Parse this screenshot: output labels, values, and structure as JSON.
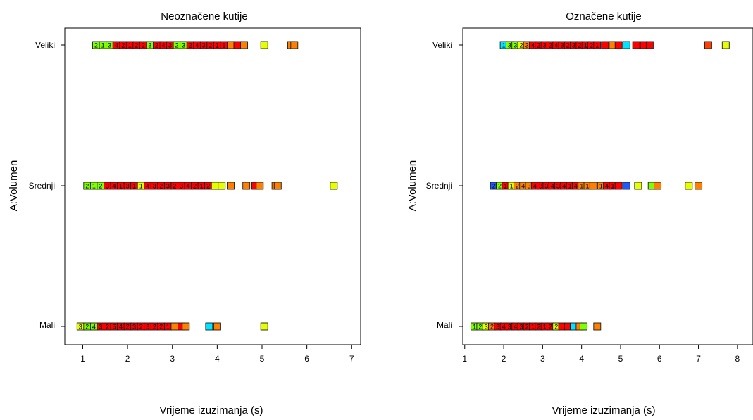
{
  "chart_data": [
    {
      "type": "scatter",
      "title": "Neoznačene kutije",
      "xlabel": "Vrijeme izuzimanja (s)",
      "ylabel": "A:Volumen",
      "categories": [
        "Mali",
        "Srednji",
        "Veliki"
      ],
      "xlim": [
        0.6,
        7.2
      ],
      "xticks": [
        1,
        2,
        3,
        4,
        5,
        6,
        7
      ],
      "grid": false,
      "series": [
        {
          "category": "Veliki",
          "points": [
            {
              "x": 1.3,
              "color": "#7fff00",
              "label": "2"
            },
            {
              "x": 1.45,
              "color": "#7fff00",
              "label": "1"
            },
            {
              "x": 1.6,
              "color": "#7fff00",
              "label": "3"
            },
            {
              "x": 1.75,
              "color": "#ff0000",
              "label": "4"
            },
            {
              "x": 1.9,
              "color": "#ff0000",
              "label": "2"
            },
            {
              "x": 2.05,
              "color": "#ff0000",
              "label": "1"
            },
            {
              "x": 2.2,
              "color": "#ff0000",
              "label": "2"
            },
            {
              "x": 2.35,
              "color": "#ff0000",
              "label": "2"
            },
            {
              "x": 2.5,
              "color": "#7fff00",
              "label": "3"
            },
            {
              "x": 2.65,
              "color": "#ff0000",
              "label": "2"
            },
            {
              "x": 2.8,
              "color": "#ff0000",
              "label": "4"
            },
            {
              "x": 2.95,
              "color": "#ff0000",
              "label": "3"
            },
            {
              "x": 3.1,
              "color": "#7fff00",
              "label": "2"
            },
            {
              "x": 3.25,
              "color": "#7fff00",
              "label": "3"
            },
            {
              "x": 3.4,
              "color": "#ff0000",
              "label": "2"
            },
            {
              "x": 3.55,
              "color": "#ff0000",
              "label": "4"
            },
            {
              "x": 3.7,
              "color": "#ff0000",
              "label": "3"
            },
            {
              "x": 3.85,
              "color": "#ff0000",
              "label": "2"
            },
            {
              "x": 4.0,
              "color": "#ff0000",
              "label": "1"
            },
            {
              "x": 4.15,
              "color": "#ff0000",
              "label": "1"
            },
            {
              "x": 4.3,
              "color": "#ff7f00",
              "label": ""
            },
            {
              "x": 4.45,
              "color": "#ff0000",
              "label": ""
            },
            {
              "x": 4.6,
              "color": "#ff7f00",
              "label": ""
            },
            {
              "x": 5.05,
              "color": "#e5ff00",
              "label": ""
            },
            {
              "x": 5.65,
              "color": "#ff7f00",
              "label": ""
            },
            {
              "x": 5.72,
              "color": "#ff7f00",
              "label": ""
            }
          ]
        },
        {
          "category": "Srednji",
          "points": [
            {
              "x": 1.1,
              "color": "#7fff00",
              "label": "2"
            },
            {
              "x": 1.25,
              "color": "#7fff00",
              "label": "1"
            },
            {
              "x": 1.4,
              "color": "#7fff00",
              "label": "2"
            },
            {
              "x": 1.55,
              "color": "#ff0000",
              "label": "3"
            },
            {
              "x": 1.7,
              "color": "#ff0000",
              "label": "4"
            },
            {
              "x": 1.85,
              "color": "#ff0000",
              "label": "1"
            },
            {
              "x": 2.0,
              "color": "#ff0000",
              "label": "3"
            },
            {
              "x": 2.15,
              "color": "#ff0000",
              "label": "1"
            },
            {
              "x": 2.3,
              "color": "#e5ff00",
              "label": "1"
            },
            {
              "x": 2.45,
              "color": "#ff0000",
              "label": "4"
            },
            {
              "x": 2.6,
              "color": "#ff0000",
              "label": "3"
            },
            {
              "x": 2.75,
              "color": "#ff0000",
              "label": "2"
            },
            {
              "x": 2.9,
              "color": "#ff0000",
              "label": "3"
            },
            {
              "x": 3.05,
              "color": "#ff0000",
              "label": "2"
            },
            {
              "x": 3.2,
              "color": "#ff0000",
              "label": "3"
            },
            {
              "x": 3.35,
              "color": "#ff0000",
              "label": "4"
            },
            {
              "x": 3.5,
              "color": "#ff0000",
              "label": "2"
            },
            {
              "x": 3.65,
              "color": "#ff0000",
              "label": "1"
            },
            {
              "x": 3.8,
              "color": "#ff0000",
              "label": "2"
            },
            {
              "x": 3.95,
              "color": "#e5ff00",
              "label": ""
            },
            {
              "x": 4.1,
              "color": "#e5ff00",
              "label": ""
            },
            {
              "x": 4.3,
              "color": "#ff7f00",
              "label": ""
            },
            {
              "x": 4.65,
              "color": "#ff7f00",
              "label": ""
            },
            {
              "x": 4.85,
              "color": "#ff0000",
              "label": ""
            },
            {
              "x": 4.95,
              "color": "#ff7f00",
              "label": ""
            },
            {
              "x": 5.3,
              "color": "#ff7f00",
              "label": ""
            },
            {
              "x": 5.35,
              "color": "#ff7f00",
              "label": ""
            },
            {
              "x": 6.6,
              "color": "#e5ff00",
              "label": ""
            }
          ]
        },
        {
          "category": "Mali",
          "points": [
            {
              "x": 0.95,
              "color": "#e5ff00",
              "label": "3"
            },
            {
              "x": 1.1,
              "color": "#7fff00",
              "label": "2"
            },
            {
              "x": 1.25,
              "color": "#7fff00",
              "label": "4"
            },
            {
              "x": 1.4,
              "color": "#ff0000",
              "label": "3"
            },
            {
              "x": 1.55,
              "color": "#ff0000",
              "label": "2"
            },
            {
              "x": 1.7,
              "color": "#ff0000",
              "label": "5"
            },
            {
              "x": 1.85,
              "color": "#ff0000",
              "label": "4"
            },
            {
              "x": 2.0,
              "color": "#ff0000",
              "label": "2"
            },
            {
              "x": 2.15,
              "color": "#ff0000",
              "label": "3"
            },
            {
              "x": 2.3,
              "color": "#ff0000",
              "label": "2"
            },
            {
              "x": 2.45,
              "color": "#ff0000",
              "label": "3"
            },
            {
              "x": 2.6,
              "color": "#ff0000",
              "label": "2"
            },
            {
              "x": 2.75,
              "color": "#ff0000",
              "label": "2"
            },
            {
              "x": 2.9,
              "color": "#ff0000",
              "label": "1"
            },
            {
              "x": 3.05,
              "color": "#ff7f00",
              "label": ""
            },
            {
              "x": 3.2,
              "color": "#ff0000",
              "label": ""
            },
            {
              "x": 3.3,
              "color": "#ff7f00",
              "label": ""
            },
            {
              "x": 3.82,
              "color": "#00e5ff",
              "label": ""
            },
            {
              "x": 4.0,
              "color": "#ff7f00",
              "label": ""
            },
            {
              "x": 5.05,
              "color": "#e5ff00",
              "label": ""
            }
          ]
        }
      ]
    },
    {
      "type": "scatter",
      "title": "Označene kutije",
      "xlabel": "Vrijeme izuzimanja (s)",
      "ylabel": "A:Volumen",
      "categories": [
        "Mali",
        "Srednji",
        "Veliki"
      ],
      "xlim": [
        0.95,
        8.4
      ],
      "xticks": [
        1,
        2,
        3,
        4,
        5,
        6,
        7,
        8
      ],
      "grid": false,
      "series": [
        {
          "category": "Veliki",
          "points": [
            {
              "x": 2.0,
              "color": "#00e5ff",
              "label": "1"
            },
            {
              "x": 2.15,
              "color": "#7fff00",
              "label": "3"
            },
            {
              "x": 2.3,
              "color": "#7fff00",
              "label": "3"
            },
            {
              "x": 2.45,
              "color": "#e5ff00",
              "label": "2"
            },
            {
              "x": 2.6,
              "color": "#ff7f00",
              "label": "3"
            },
            {
              "x": 2.75,
              "color": "#ff0000",
              "label": "4"
            },
            {
              "x": 2.9,
              "color": "#ff0000",
              "label": "2"
            },
            {
              "x": 3.05,
              "color": "#ff0000",
              "label": "3"
            },
            {
              "x": 3.2,
              "color": "#ff0000",
              "label": "2"
            },
            {
              "x": 3.35,
              "color": "#ff0000",
              "label": "4"
            },
            {
              "x": 3.5,
              "color": "#ff0000",
              "label": "3"
            },
            {
              "x": 3.65,
              "color": "#ff0000",
              "label": "2"
            },
            {
              "x": 3.8,
              "color": "#ff0000",
              "label": "3"
            },
            {
              "x": 3.95,
              "color": "#ff0000",
              "label": "2"
            },
            {
              "x": 4.1,
              "color": "#ff0000",
              "label": "1"
            },
            {
              "x": 4.25,
              "color": "#ff0000",
              "label": "2"
            },
            {
              "x": 4.4,
              "color": "#ff0000",
              "label": "1"
            },
            {
              "x": 4.6,
              "color": "#ff0000",
              "label": ""
            },
            {
              "x": 4.8,
              "color": "#ff7f00",
              "label": ""
            },
            {
              "x": 4.95,
              "color": "#ff0000",
              "label": ""
            },
            {
              "x": 5.15,
              "color": "#00e5ff",
              "label": ""
            },
            {
              "x": 5.4,
              "color": "#ff0000",
              "label": ""
            },
            {
              "x": 5.6,
              "color": "#ff0000",
              "label": ""
            },
            {
              "x": 5.75,
              "color": "#ff0000",
              "label": ""
            },
            {
              "x": 7.25,
              "color": "#ff4000",
              "label": ""
            },
            {
              "x": 7.7,
              "color": "#e5ff00",
              "label": ""
            }
          ]
        },
        {
          "category": "Srednji",
          "points": [
            {
              "x": 1.75,
              "color": "#1e5aff",
              "label": "2"
            },
            {
              "x": 1.9,
              "color": "#7fff00",
              "label": "2"
            },
            {
              "x": 2.05,
              "color": "#ff0000",
              "label": "1"
            },
            {
              "x": 2.2,
              "color": "#e5ff00",
              "label": "1"
            },
            {
              "x": 2.35,
              "color": "#ff7f00",
              "label": "2"
            },
            {
              "x": 2.5,
              "color": "#ff7f00",
              "label": "4"
            },
            {
              "x": 2.65,
              "color": "#ff7f00",
              "label": "3"
            },
            {
              "x": 2.8,
              "color": "#ff0000",
              "label": "4"
            },
            {
              "x": 2.95,
              "color": "#ff0000",
              "label": "3"
            },
            {
              "x": 3.1,
              "color": "#ff0000",
              "label": "3"
            },
            {
              "x": 3.25,
              "color": "#ff0000",
              "label": "4"
            },
            {
              "x": 3.4,
              "color": "#ff0000",
              "label": "3"
            },
            {
              "x": 3.55,
              "color": "#ff0000",
              "label": "4"
            },
            {
              "x": 3.7,
              "color": "#ff0000",
              "label": "1"
            },
            {
              "x": 3.85,
              "color": "#ff0000",
              "label": "4"
            },
            {
              "x": 4.0,
              "color": "#ff7f00",
              "label": "1"
            },
            {
              "x": 4.15,
              "color": "#ff7f00",
              "label": "1"
            },
            {
              "x": 4.3,
              "color": "#ff7f00",
              "label": ""
            },
            {
              "x": 4.5,
              "color": "#ff7f00",
              "label": "1"
            },
            {
              "x": 4.65,
              "color": "#ff0000",
              "label": "4"
            },
            {
              "x": 4.8,
              "color": "#ff0000",
              "label": "1"
            },
            {
              "x": 4.95,
              "color": "#ff0000",
              "label": ""
            },
            {
              "x": 5.15,
              "color": "#1e5aff",
              "label": ""
            },
            {
              "x": 5.45,
              "color": "#e5ff00",
              "label": ""
            },
            {
              "x": 5.8,
              "color": "#7fff00",
              "label": ""
            },
            {
              "x": 5.95,
              "color": "#ff7f00",
              "label": ""
            },
            {
              "x": 6.75,
              "color": "#e5ff00",
              "label": ""
            },
            {
              "x": 7.0,
              "color": "#ff7f00",
              "label": ""
            }
          ]
        },
        {
          "category": "Mali",
          "points": [
            {
              "x": 1.25,
              "color": "#7fff00",
              "label": "1"
            },
            {
              "x": 1.4,
              "color": "#7fff00",
              "label": "2"
            },
            {
              "x": 1.55,
              "color": "#e5ff00",
              "label": "3"
            },
            {
              "x": 1.7,
              "color": "#ff7f00",
              "label": "2"
            },
            {
              "x": 1.85,
              "color": "#ff0000",
              "label": "3"
            },
            {
              "x": 2.0,
              "color": "#ff0000",
              "label": "4"
            },
            {
              "x": 2.15,
              "color": "#ff0000",
              "label": "3"
            },
            {
              "x": 2.3,
              "color": "#ff0000",
              "label": "4"
            },
            {
              "x": 2.45,
              "color": "#ff0000",
              "label": "3"
            },
            {
              "x": 2.6,
              "color": "#ff0000",
              "label": "2"
            },
            {
              "x": 2.75,
              "color": "#ff0000",
              "label": "1"
            },
            {
              "x": 2.9,
              "color": "#ff0000",
              "label": "2"
            },
            {
              "x": 3.05,
              "color": "#ff0000",
              "label": "1"
            },
            {
              "x": 3.2,
              "color": "#ff0000",
              "label": "2"
            },
            {
              "x": 3.35,
              "color": "#e5ff00",
              "label": "2"
            },
            {
              "x": 3.5,
              "color": "#ff0000",
              "label": ""
            },
            {
              "x": 3.65,
              "color": "#ff0000",
              "label": ""
            },
            {
              "x": 3.8,
              "color": "#00e5ff",
              "label": ""
            },
            {
              "x": 3.95,
              "color": "#ff7f00",
              "label": ""
            },
            {
              "x": 4.05,
              "color": "#7fff00",
              "label": ""
            },
            {
              "x": 4.4,
              "color": "#ff7f00",
              "label": ""
            }
          ]
        }
      ]
    }
  ]
}
